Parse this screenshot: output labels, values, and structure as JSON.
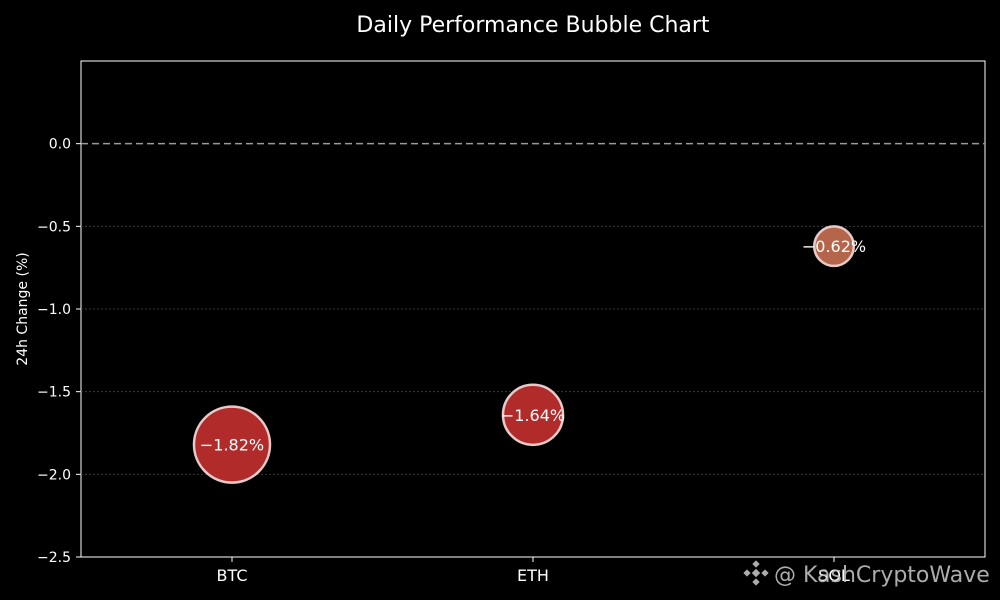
{
  "chart_data": {
    "type": "scatter",
    "title": "Daily Performance Bubble Chart",
    "xlabel": "",
    "ylabel": "24h Change (%)",
    "categories": [
      "BTC",
      "ETH",
      "SOL"
    ],
    "values": [
      -1.82,
      -1.64,
      -0.62
    ],
    "data_labels": [
      "−1.82%",
      "−1.64%",
      "−0.62%"
    ],
    "bubble_relative_size": [
      1.0,
      0.79,
      0.52
    ],
    "bubble_colors": [
      "#b22b2b",
      "#b22b2b",
      "#b5654a"
    ],
    "bubble_edge_color": "#e6caca",
    "ylim": [
      -2.5,
      0.5
    ],
    "yticks": [
      0.0,
      -0.5,
      -1.0,
      -1.5,
      -2.0,
      -2.5
    ],
    "ytick_labels": [
      "0.0",
      "−0.5",
      "−1.0",
      "−1.5",
      "−2.0",
      "−2.5"
    ],
    "reference_line": 0.0,
    "grid": true,
    "legend": "none",
    "background": "#000000"
  },
  "watermark": {
    "text": "@ KashCryptoWave",
    "icon": "binance-diamond-icon"
  }
}
